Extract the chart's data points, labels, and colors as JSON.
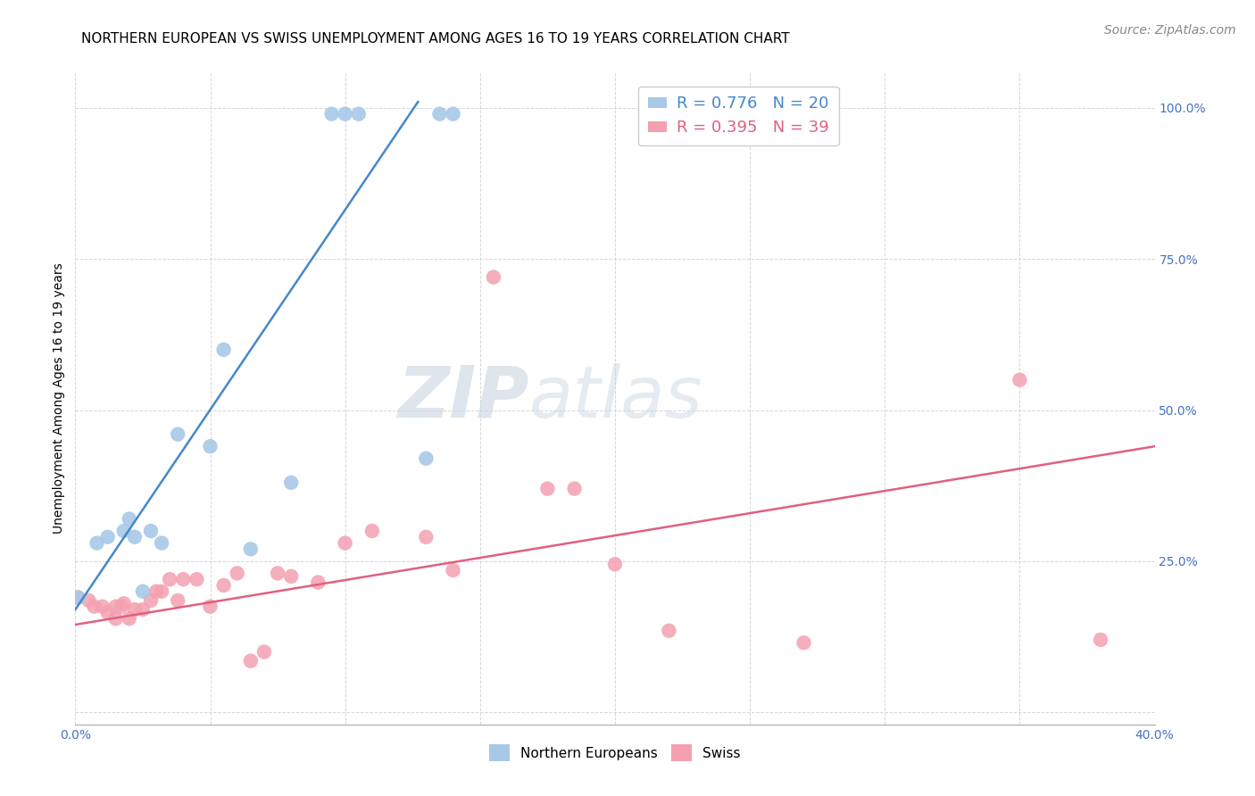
{
  "title": "NORTHERN EUROPEAN VS SWISS UNEMPLOYMENT AMONG AGES 16 TO 19 YEARS CORRELATION CHART",
  "source": "Source: ZipAtlas.com",
  "ylabel": "Unemployment Among Ages 16 to 19 years",
  "xlim": [
    0.0,
    0.4
  ],
  "ylim": [
    -0.02,
    1.06
  ],
  "xticks": [
    0.0,
    0.05,
    0.1,
    0.15,
    0.2,
    0.25,
    0.3,
    0.35,
    0.4
  ],
  "yticks": [
    0.0,
    0.25,
    0.5,
    0.75,
    1.0
  ],
  "blue_R": 0.776,
  "blue_N": 20,
  "pink_R": 0.395,
  "pink_N": 39,
  "blue_color": "#a8c8e8",
  "pink_color": "#f4a0b0",
  "blue_line_color": "#4488cc",
  "pink_line_color": "#e06080",
  "legend_label_blue": "Northern Europeans",
  "legend_label_pink": "Swiss",
  "watermark_zip": "ZIP",
  "watermark_atlas": "atlas",
  "blue_scatter_x": [
    0.001,
    0.008,
    0.012,
    0.018,
    0.02,
    0.022,
    0.025,
    0.028,
    0.032,
    0.038,
    0.05,
    0.055,
    0.065,
    0.08,
    0.095,
    0.1,
    0.105,
    0.13,
    0.135,
    0.14
  ],
  "blue_scatter_y": [
    0.19,
    0.28,
    0.29,
    0.3,
    0.32,
    0.29,
    0.2,
    0.3,
    0.28,
    0.46,
    0.44,
    0.6,
    0.27,
    0.38,
    0.99,
    0.99,
    0.99,
    0.42,
    0.99,
    0.99
  ],
  "pink_scatter_x": [
    0.001,
    0.005,
    0.007,
    0.01,
    0.012,
    0.015,
    0.015,
    0.017,
    0.018,
    0.02,
    0.022,
    0.025,
    0.028,
    0.03,
    0.032,
    0.035,
    0.038,
    0.04,
    0.045,
    0.05,
    0.055,
    0.06,
    0.065,
    0.07,
    0.075,
    0.08,
    0.09,
    0.1,
    0.11,
    0.13,
    0.14,
    0.155,
    0.175,
    0.185,
    0.2,
    0.22,
    0.27,
    0.35,
    0.38
  ],
  "pink_scatter_y": [
    0.19,
    0.185,
    0.175,
    0.175,
    0.165,
    0.175,
    0.155,
    0.175,
    0.18,
    0.155,
    0.17,
    0.17,
    0.185,
    0.2,
    0.2,
    0.22,
    0.185,
    0.22,
    0.22,
    0.175,
    0.21,
    0.23,
    0.085,
    0.1,
    0.23,
    0.225,
    0.215,
    0.28,
    0.3,
    0.29,
    0.235,
    0.72,
    0.37,
    0.37,
    0.245,
    0.135,
    0.115,
    0.55,
    0.12
  ],
  "blue_line_x0": 0.0,
  "blue_line_y0": 0.17,
  "blue_line_x1": 0.127,
  "blue_line_y1": 1.01,
  "pink_line_x0": 0.0,
  "pink_line_y0": 0.145,
  "pink_line_x1": 0.4,
  "pink_line_y1": 0.44,
  "title_fontsize": 11,
  "axis_label_fontsize": 10,
  "tick_fontsize": 10,
  "legend_fontsize": 13,
  "source_fontsize": 10
}
